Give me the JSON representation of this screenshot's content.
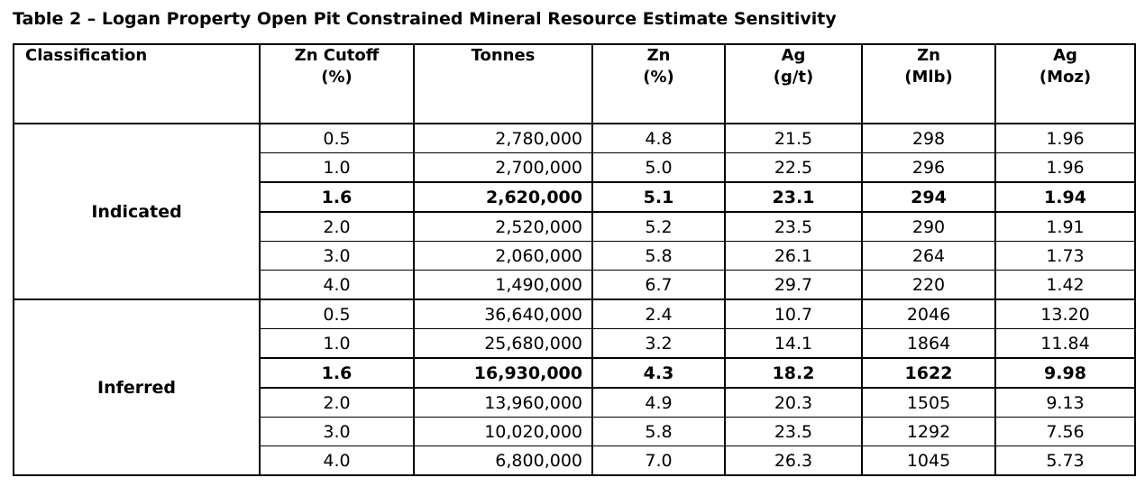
{
  "title": "Table 2 – Logan Property Open Pit Constrained Mineral Resource Estimate Sensitivity",
  "table": {
    "columns": [
      {
        "label": "Classification",
        "unit": ""
      },
      {
        "label": "Zn Cutoff",
        "unit": "(%)"
      },
      {
        "label": "Tonnes",
        "unit": ""
      },
      {
        "label": "Zn",
        "unit": "(%)"
      },
      {
        "label": "Ag",
        "unit": "(g/t)"
      },
      {
        "label": "Zn",
        "unit": "(Mlb)"
      },
      {
        "label": "Ag",
        "unit": "(Moz)"
      }
    ],
    "groups": [
      {
        "classification": "Indicated",
        "rows": [
          {
            "cutoff": "0.5",
            "tonnes": "2,780,000",
            "zn": "4.8",
            "ag": "21.5",
            "zn_mlb": "298",
            "ag_moz": "1.96",
            "highlight": false
          },
          {
            "cutoff": "1.0",
            "tonnes": "2,700,000",
            "zn": "5.0",
            "ag": "22.5",
            "zn_mlb": "296",
            "ag_moz": "1.96",
            "highlight": false
          },
          {
            "cutoff": "1.6",
            "tonnes": "2,620,000",
            "zn": "5.1",
            "ag": "23.1",
            "zn_mlb": "294",
            "ag_moz": "1.94",
            "highlight": true
          },
          {
            "cutoff": "2.0",
            "tonnes": "2,520,000",
            "zn": "5.2",
            "ag": "23.5",
            "zn_mlb": "290",
            "ag_moz": "1.91",
            "highlight": false
          },
          {
            "cutoff": "3.0",
            "tonnes": "2,060,000",
            "zn": "5.8",
            "ag": "26.1",
            "zn_mlb": "264",
            "ag_moz": "1.73",
            "highlight": false
          },
          {
            "cutoff": "4.0",
            "tonnes": "1,490,000",
            "zn": "6.7",
            "ag": "29.7",
            "zn_mlb": "220",
            "ag_moz": "1.42",
            "highlight": false
          }
        ]
      },
      {
        "classification": "Inferred",
        "rows": [
          {
            "cutoff": "0.5",
            "tonnes": "36,640,000",
            "zn": "2.4",
            "ag": "10.7",
            "zn_mlb": "2046",
            "ag_moz": "13.20",
            "highlight": false
          },
          {
            "cutoff": "1.0",
            "tonnes": "25,680,000",
            "zn": "3.2",
            "ag": "14.1",
            "zn_mlb": "1864",
            "ag_moz": "11.84",
            "highlight": false
          },
          {
            "cutoff": "1.6",
            "tonnes": "16,930,000",
            "zn": "4.3",
            "ag": "18.2",
            "zn_mlb": "1622",
            "ag_moz": "9.98",
            "highlight": true
          },
          {
            "cutoff": "2.0",
            "tonnes": "13,960,000",
            "zn": "4.9",
            "ag": "20.3",
            "zn_mlb": "1505",
            "ag_moz": "9.13",
            "highlight": false
          },
          {
            "cutoff": "3.0",
            "tonnes": "10,020,000",
            "zn": "5.8",
            "ag": "23.5",
            "zn_mlb": "1292",
            "ag_moz": "7.56",
            "highlight": false
          },
          {
            "cutoff": "4.0",
            "tonnes": "6,800,000",
            "zn": "7.0",
            "ag": "26.3",
            "zn_mlb": "1045",
            "ag_moz": "5.73",
            "highlight": false
          }
        ]
      }
    ]
  }
}
